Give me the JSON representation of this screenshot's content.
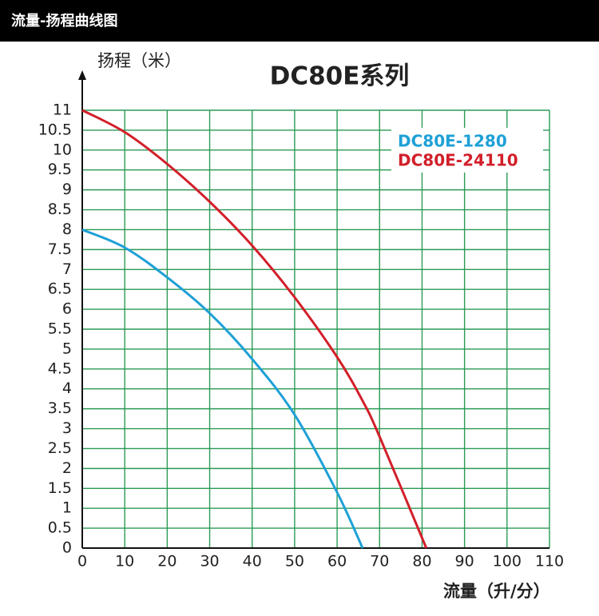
{
  "header": {
    "title": "流量-扬程曲线图"
  },
  "chart_data": {
    "type": "line",
    "title": "DC80E系列",
    "y_label": "扬程（米）",
    "x_label": "流量（升/分）",
    "x": [
      0,
      10,
      20,
      30,
      40,
      50,
      60,
      66,
      70,
      81
    ],
    "series": [
      {
        "name": "DC80E-1280",
        "color": "#1ea0d6",
        "values": [
          8,
          7.55,
          6.8,
          5.9,
          4.75,
          3.35,
          1.4,
          0,
          null,
          null
        ]
      },
      {
        "name": "DC80E-24110",
        "color": "#d21f2a",
        "values": [
          11,
          10.45,
          9.65,
          8.7,
          7.6,
          6.3,
          4.8,
          3.7,
          2.8,
          0
        ]
      }
    ],
    "xlim": [
      0,
      110
    ],
    "xticks": [
      0,
      10,
      20,
      30,
      40,
      50,
      60,
      70,
      80,
      90,
      100,
      110
    ],
    "ylim": [
      0,
      11
    ],
    "yticks": [
      0,
      0.5,
      1,
      1.5,
      2,
      2.5,
      3,
      3.5,
      4,
      4.5,
      5,
      5.5,
      6,
      6.5,
      7,
      7.5,
      8,
      8.5,
      9,
      9.5,
      10,
      10.5,
      11
    ],
    "grid": true,
    "grid_color": "#2b9a55",
    "legend": "upper right"
  }
}
